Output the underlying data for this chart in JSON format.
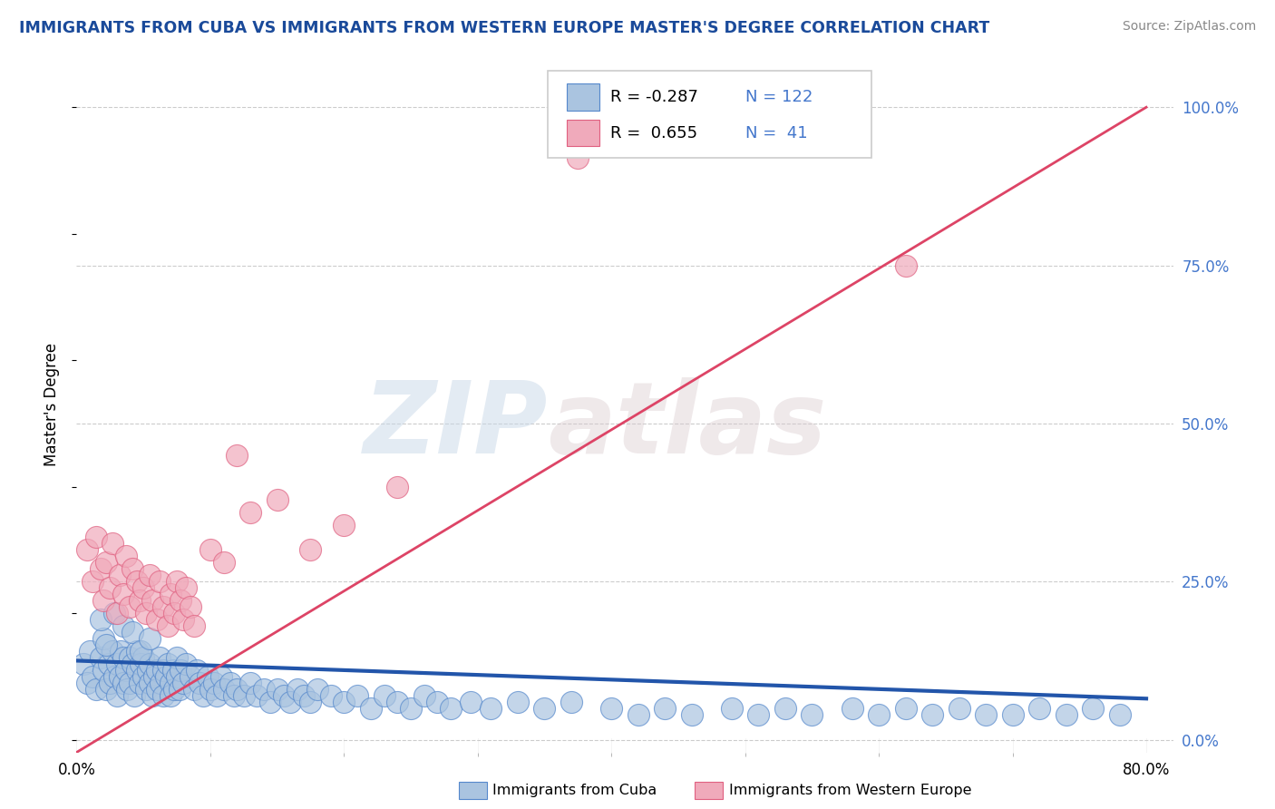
{
  "title": "IMMIGRANTS FROM CUBA VS IMMIGRANTS FROM WESTERN EUROPE MASTER'S DEGREE CORRELATION CHART",
  "source_text": "Source: ZipAtlas.com",
  "ylabel": "Master's Degree",
  "watermark_zip": "ZIP",
  "watermark_atlas": "atlas",
  "xlim": [
    0.0,
    0.82
  ],
  "ylim": [
    -0.02,
    1.08
  ],
  "plot_ylim": [
    0.0,
    1.0
  ],
  "yticks_right": [
    0.0,
    0.25,
    0.5,
    0.75,
    1.0
  ],
  "yticklabels_right": [
    "0.0%",
    "25.0%",
    "50.0%",
    "75.0%",
    "100.0%"
  ],
  "legend_r1_label": "R = -0.287",
  "legend_n1_label": "N = 122",
  "legend_r2_label": "R =  0.655",
  "legend_n2_label": "N =  41",
  "blue_fill": "#aac4e0",
  "pink_fill": "#f0aabb",
  "blue_edge": "#5588cc",
  "pink_edge": "#e06080",
  "blue_line_color": "#2255aa",
  "pink_line_color": "#dd4466",
  "title_color": "#1a4a9a",
  "tick_color": "#4477cc",
  "grid_color": "#cccccc",
  "background_color": "#ffffff",
  "blue_line_x0": 0.0,
  "blue_line_y0": 0.125,
  "blue_line_x1": 0.8,
  "blue_line_y1": 0.065,
  "pink_line_x0": 0.0,
  "pink_line_y0": -0.02,
  "pink_line_x1": 0.8,
  "pink_line_y1": 1.0,
  "blue_x": [
    0.005,
    0.008,
    0.01,
    0.012,
    0.015,
    0.018,
    0.02,
    0.02,
    0.022,
    0.024,
    0.025,
    0.027,
    0.028,
    0.03,
    0.03,
    0.032,
    0.033,
    0.035,
    0.035,
    0.037,
    0.038,
    0.04,
    0.04,
    0.042,
    0.043,
    0.045,
    0.045,
    0.047,
    0.048,
    0.05,
    0.05,
    0.052,
    0.053,
    0.055,
    0.055,
    0.057,
    0.058,
    0.06,
    0.06,
    0.062,
    0.063,
    0.065,
    0.065,
    0.067,
    0.068,
    0.07,
    0.07,
    0.072,
    0.073,
    0.075,
    0.075,
    0.077,
    0.078,
    0.08,
    0.082,
    0.085,
    0.088,
    0.09,
    0.092,
    0.095,
    0.098,
    0.1,
    0.103,
    0.105,
    0.108,
    0.11,
    0.115,
    0.118,
    0.12,
    0.125,
    0.13,
    0.135,
    0.14,
    0.145,
    0.15,
    0.155,
    0.16,
    0.165,
    0.17,
    0.175,
    0.18,
    0.19,
    0.2,
    0.21,
    0.22,
    0.23,
    0.24,
    0.25,
    0.26,
    0.27,
    0.28,
    0.295,
    0.31,
    0.33,
    0.35,
    0.37,
    0.4,
    0.42,
    0.44,
    0.46,
    0.49,
    0.51,
    0.53,
    0.55,
    0.58,
    0.6,
    0.62,
    0.64,
    0.66,
    0.68,
    0.7,
    0.72,
    0.74,
    0.76,
    0.78,
    0.018,
    0.022,
    0.028,
    0.035,
    0.042,
    0.048,
    0.055
  ],
  "blue_y": [
    0.12,
    0.09,
    0.14,
    0.1,
    0.08,
    0.13,
    0.11,
    0.16,
    0.08,
    0.12,
    0.09,
    0.14,
    0.1,
    0.12,
    0.07,
    0.1,
    0.14,
    0.09,
    0.13,
    0.11,
    0.08,
    0.13,
    0.09,
    0.12,
    0.07,
    0.11,
    0.14,
    0.09,
    0.12,
    0.1,
    0.13,
    0.08,
    0.11,
    0.09,
    0.12,
    0.07,
    0.1,
    0.11,
    0.08,
    0.13,
    0.09,
    0.11,
    0.07,
    0.1,
    0.12,
    0.09,
    0.07,
    0.11,
    0.08,
    0.1,
    0.13,
    0.08,
    0.11,
    0.09,
    0.12,
    0.1,
    0.08,
    0.11,
    0.09,
    0.07,
    0.1,
    0.08,
    0.09,
    0.07,
    0.1,
    0.08,
    0.09,
    0.07,
    0.08,
    0.07,
    0.09,
    0.07,
    0.08,
    0.06,
    0.08,
    0.07,
    0.06,
    0.08,
    0.07,
    0.06,
    0.08,
    0.07,
    0.06,
    0.07,
    0.05,
    0.07,
    0.06,
    0.05,
    0.07,
    0.06,
    0.05,
    0.06,
    0.05,
    0.06,
    0.05,
    0.06,
    0.05,
    0.04,
    0.05,
    0.04,
    0.05,
    0.04,
    0.05,
    0.04,
    0.05,
    0.04,
    0.05,
    0.04,
    0.05,
    0.04,
    0.04,
    0.05,
    0.04,
    0.05,
    0.04,
    0.19,
    0.15,
    0.2,
    0.18,
    0.17,
    0.14,
    0.16
  ],
  "pink_x": [
    0.008,
    0.012,
    0.015,
    0.018,
    0.02,
    0.022,
    0.025,
    0.027,
    0.03,
    0.032,
    0.035,
    0.037,
    0.04,
    0.042,
    0.045,
    0.047,
    0.05,
    0.052,
    0.055,
    0.057,
    0.06,
    0.062,
    0.065,
    0.068,
    0.07,
    0.073,
    0.075,
    0.078,
    0.08,
    0.082,
    0.085,
    0.088,
    0.1,
    0.11,
    0.12,
    0.13,
    0.15,
    0.175,
    0.2,
    0.24,
    0.62
  ],
  "pink_y": [
    0.3,
    0.25,
    0.32,
    0.27,
    0.22,
    0.28,
    0.24,
    0.31,
    0.2,
    0.26,
    0.23,
    0.29,
    0.21,
    0.27,
    0.25,
    0.22,
    0.24,
    0.2,
    0.26,
    0.22,
    0.19,
    0.25,
    0.21,
    0.18,
    0.23,
    0.2,
    0.25,
    0.22,
    0.19,
    0.24,
    0.21,
    0.18,
    0.3,
    0.28,
    0.45,
    0.36,
    0.38,
    0.3,
    0.34,
    0.4,
    0.75
  ],
  "pink_outlier_x": [
    0.375
  ],
  "pink_outlier_y": [
    0.92
  ]
}
